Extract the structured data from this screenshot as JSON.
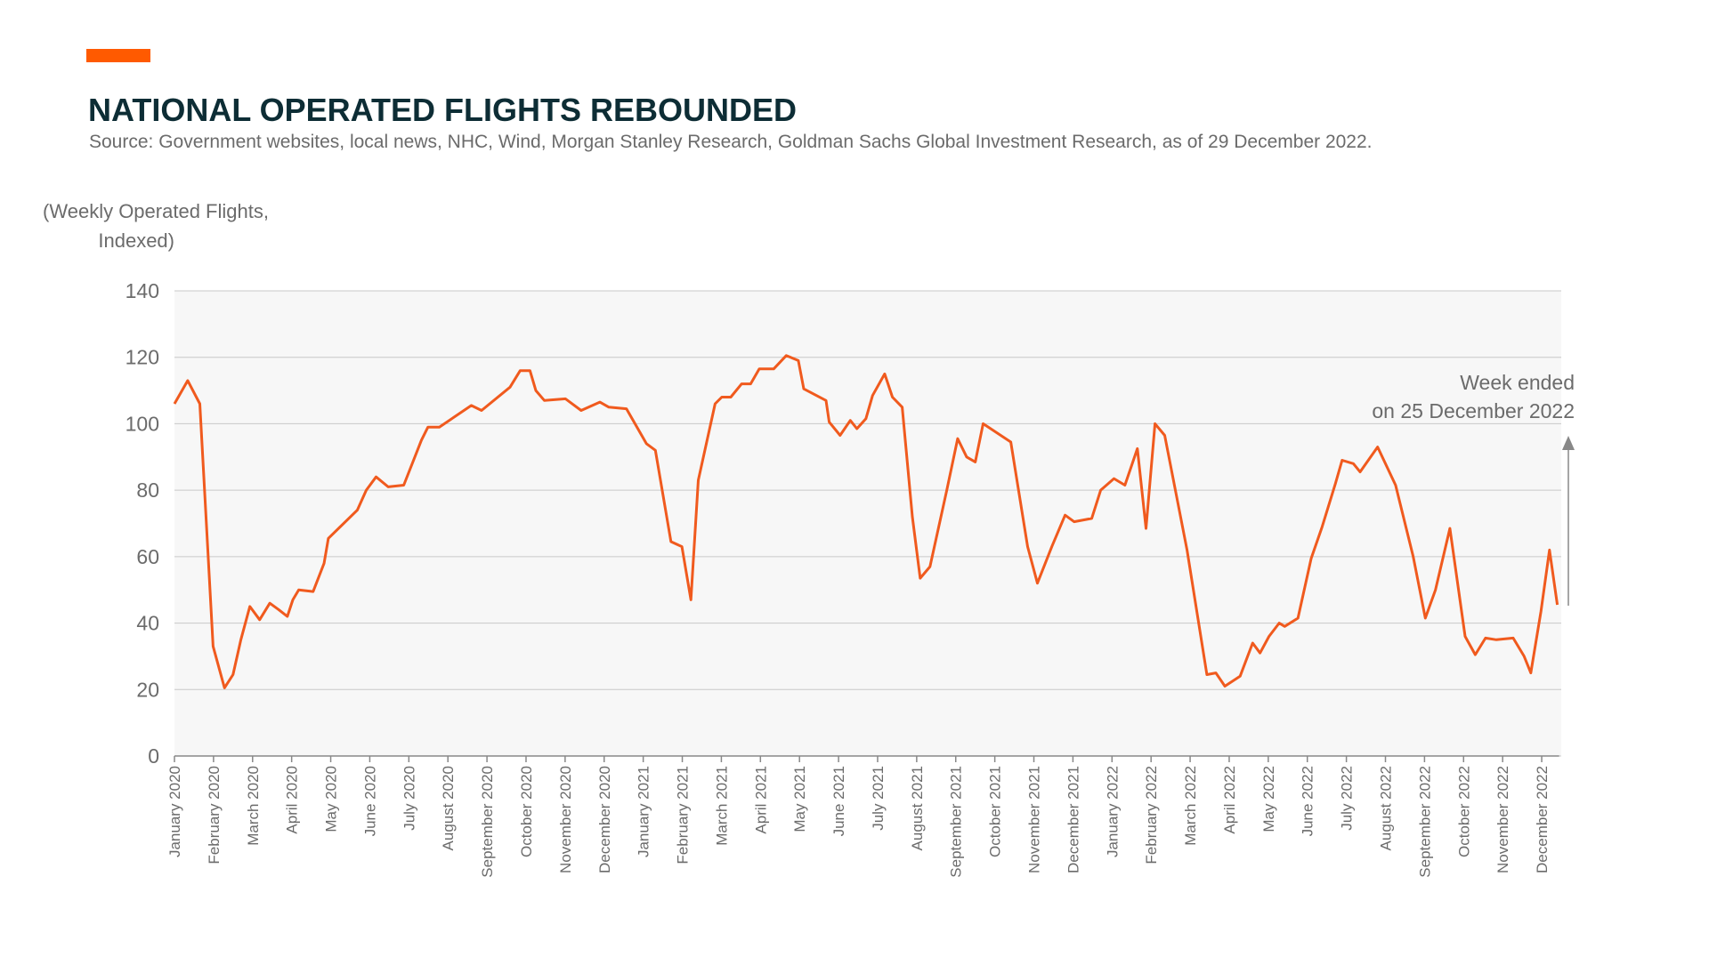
{
  "chart_data": {
    "type": "line",
    "title": "NATIONAL OPERATED FLIGHTS REBOUNDED",
    "subtitle": "Source: Government websites, local news, NHC, Wind, Morgan Stanley Research, Goldman Sachs Global Investment Research, as of 29 December 2022.",
    "ylabel": [
      "(Weekly Operated Flights,",
      "Indexed)"
    ],
    "annotation": [
      "Week ended",
      "on 25 December 2022"
    ],
    "color": "#f05a1e",
    "grid": true,
    "ylim": [
      0,
      140
    ],
    "yticks": [
      0,
      20,
      40,
      60,
      80,
      100,
      120,
      140
    ],
    "xlim": [
      0,
      35.5
    ],
    "xticks": [
      {
        "value": 0,
        "label": "January 2020"
      },
      {
        "value": 1,
        "label": "February 2020"
      },
      {
        "value": 2,
        "label": "March 2020"
      },
      {
        "value": 3,
        "label": "April 2020"
      },
      {
        "value": 4,
        "label": "May 2020"
      },
      {
        "value": 5,
        "label": "June 2020"
      },
      {
        "value": 6,
        "label": "July 2020"
      },
      {
        "value": 7,
        "label": "August 2020"
      },
      {
        "value": 8,
        "label": "September 2020"
      },
      {
        "value": 9,
        "label": "October 2020"
      },
      {
        "value": 10,
        "label": "November 2020"
      },
      {
        "value": 11,
        "label": "December 2020"
      },
      {
        "value": 12,
        "label": "January 2021"
      },
      {
        "value": 13,
        "label": "February 2021"
      },
      {
        "value": 14,
        "label": "March 2021"
      },
      {
        "value": 15,
        "label": "April 2021"
      },
      {
        "value": 16,
        "label": "May 2021"
      },
      {
        "value": 17,
        "label": "June 2021"
      },
      {
        "value": 18,
        "label": "July 2021"
      },
      {
        "value": 19,
        "label": "August 2021"
      },
      {
        "value": 20,
        "label": "September 2021"
      },
      {
        "value": 21,
        "label": "October 2021"
      },
      {
        "value": 22,
        "label": "November 2021"
      },
      {
        "value": 23,
        "label": "December 2021"
      },
      {
        "value": 24,
        "label": "January 2022"
      },
      {
        "value": 25,
        "label": "February 2022"
      },
      {
        "value": 26,
        "label": "March 2022"
      },
      {
        "value": 27,
        "label": "April 2022"
      },
      {
        "value": 28,
        "label": "May 2022"
      },
      {
        "value": 29,
        "label": "June 2022"
      },
      {
        "value": 30,
        "label": "July 2022"
      },
      {
        "value": 31,
        "label": "August 2022"
      },
      {
        "value": 32,
        "label": "September 2022"
      },
      {
        "value": 33,
        "label": "October 2022"
      },
      {
        "value": 34,
        "label": "November 2022"
      },
      {
        "value": 35,
        "label": "December 2022"
      }
    ],
    "x": [
      0,
      0.34,
      0.65,
      0.99,
      1.28,
      1.5,
      1.7,
      1.93,
      2.18,
      2.44,
      2.67,
      2.89,
      3.03,
      3.18,
      3.55,
      3.83,
      3.94,
      4.68,
      4.91,
      5.16,
      5.47,
      5.87,
      6.32,
      6.49,
      6.78,
      7.6,
      7.86,
      8.59,
      8.85,
      9.1,
      9.25,
      9.47,
      10.01,
      10.41,
      10.89,
      11.12,
      11.57,
      12.08,
      12.31,
      12.71,
      12.99,
      13.22,
      13.41,
      13.84,
      14.01,
      14.24,
      14.52,
      14.75,
      14.97,
      15.34,
      15.66,
      15.97,
      16.11,
      16.68,
      16.76,
      17.04,
      17.3,
      17.47,
      17.7,
      17.87,
      18.18,
      18.38,
      18.63,
      18.89,
      19.09,
      19.34,
      19.77,
      20.05,
      20.28,
      20.5,
      20.7,
      21.41,
      21.84,
      22.09,
      22.46,
      22.8,
      23.03,
      23.48,
      23.71,
      24.05,
      24.33,
      24.65,
      24.87,
      25.1,
      25.35,
      25.92,
      26.43,
      26.66,
      26.89,
      27.28,
      27.6,
      27.79,
      28.02,
      28.28,
      28.42,
      28.76,
      29.1,
      29.38,
      29.72,
      29.89,
      30.18,
      30.35,
      30.8,
      31.26,
      31.71,
      32.02,
      32.28,
      32.65,
      33.04,
      33.3,
      33.56,
      33.84,
      34.27,
      34.55,
      34.72,
      34.98,
      35.2,
      35.4
    ],
    "values": [
      106,
      113,
      106,
      33,
      20.5,
      24.5,
      35,
      45,
      41,
      46,
      44,
      42,
      47,
      50,
      49.5,
      58,
      65.5,
      74,
      80,
      84,
      81,
      81.5,
      95,
      99,
      99,
      105.5,
      104,
      111,
      116,
      116,
      110,
      107,
      107.5,
      104,
      106.5,
      105,
      104.5,
      94,
      92,
      64.5,
      63,
      47,
      83,
      106,
      108,
      108,
      112,
      112,
      116.5,
      116.5,
      120.5,
      119,
      110.5,
      107,
      100.5,
      96.5,
      101,
      98.5,
      101.5,
      108.5,
      115,
      108,
      105,
      72,
      53.5,
      57,
      80,
      95.5,
      90,
      88.5,
      100,
      94.5,
      63,
      52,
      63,
      72.5,
      70.5,
      71.5,
      80,
      83.5,
      81.5,
      92.5,
      68.5,
      100,
      96.5,
      62,
      24.5,
      25,
      21,
      24,
      34,
      31,
      36,
      40,
      39,
      41.5,
      59.5,
      69,
      82,
      89,
      88,
      85.5,
      93,
      81.5,
      60,
      41.5,
      50,
      68.5,
      36,
      30.5,
      35.5,
      35,
      35.5,
      30,
      25,
      43.5,
      62,
      45.5
    ]
  }
}
